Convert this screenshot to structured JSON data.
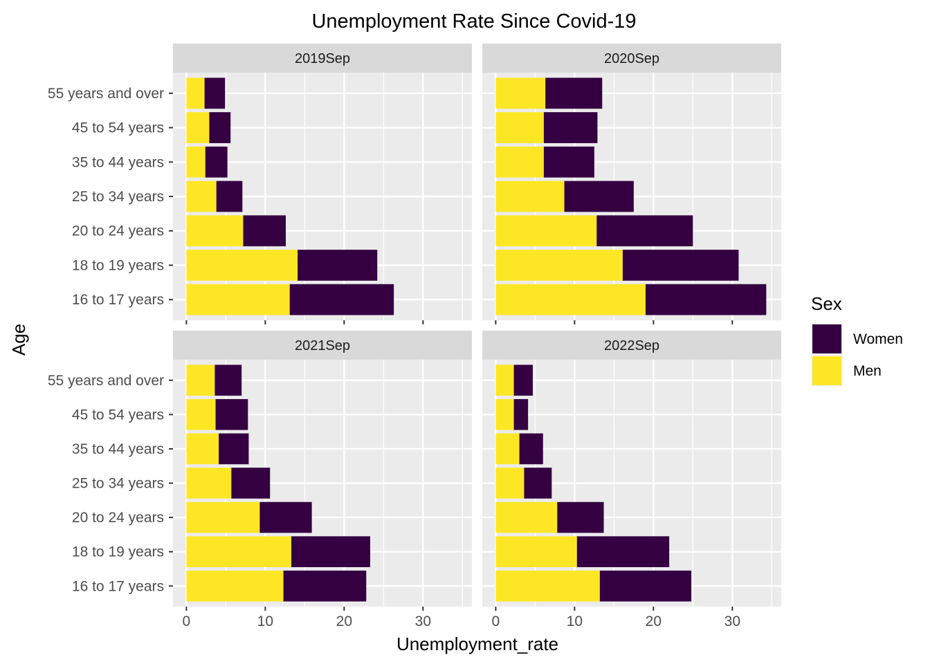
{
  "chart_data": {
    "type": "bar",
    "stacked": true,
    "orientation": "horizontal",
    "title": "Unemployment Rate Since Covid-19",
    "xlabel": "Unemployment_rate",
    "ylabel": "Age",
    "xlim": [
      -1.7,
      36.2
    ],
    "xticks": [
      0,
      10,
      20,
      30
    ],
    "grid": true,
    "categories": [
      "16 to 17 years",
      "18 to 19 years",
      "20 to 24 years",
      "25 to 34 years",
      "35 to 44 years",
      "45 to 54 years",
      "55 years and over"
    ],
    "legend": {
      "title": "Sex",
      "position": "right",
      "entries": [
        {
          "name": "Women",
          "color": "#340042"
        },
        {
          "name": "Men",
          "color": "#FDE725"
        }
      ]
    },
    "panels": [
      {
        "label": "2019Sep",
        "series": [
          {
            "name": "Men",
            "values": [
              13.1,
              14.1,
              7.2,
              3.8,
              2.4,
              2.9,
              2.3
            ]
          },
          {
            "name": "Women",
            "values": [
              13.2,
              10.1,
              5.4,
              3.3,
              2.8,
              2.7,
              2.6
            ]
          }
        ]
      },
      {
        "label": "2020Sep",
        "series": [
          {
            "name": "Men",
            "values": [
              19.0,
              16.1,
              12.8,
              8.7,
              6.1,
              6.1,
              6.3
            ]
          },
          {
            "name": "Women",
            "values": [
              15.3,
              14.7,
              12.2,
              8.8,
              6.4,
              6.8,
              7.2
            ]
          }
        ]
      },
      {
        "label": "2021Sep",
        "series": [
          {
            "name": "Men",
            "values": [
              12.3,
              13.3,
              9.3,
              5.7,
              4.1,
              3.7,
              3.6
            ]
          },
          {
            "name": "Women",
            "values": [
              10.5,
              10.0,
              6.6,
              4.9,
              3.8,
              4.1,
              3.4
            ]
          }
        ]
      },
      {
        "label": "2022Sep",
        "series": [
          {
            "name": "Men",
            "values": [
              13.2,
              10.3,
              7.8,
              3.6,
              3.0,
              2.3,
              2.3
            ]
          },
          {
            "name": "Women",
            "values": [
              11.6,
              11.7,
              5.9,
              3.5,
              3.0,
              1.8,
              2.4
            ]
          }
        ]
      }
    ]
  }
}
